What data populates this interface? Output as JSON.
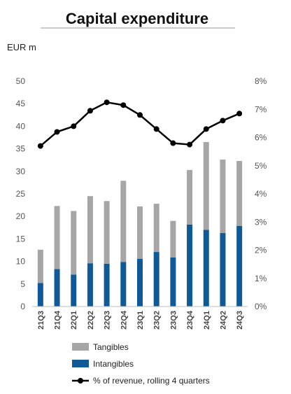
{
  "chart_data": {
    "type": "bar",
    "title": "Capital expenditure",
    "ylabel": "EUR m",
    "ylim": [
      0,
      50
    ],
    "y2lim": [
      0,
      8
    ],
    "yticks": [
      "0",
      "5",
      "10",
      "15",
      "20",
      "25",
      "30",
      "35",
      "40",
      "45",
      "50"
    ],
    "y2ticks": [
      "0%",
      "1%",
      "2%",
      "3%",
      "4%",
      "5%",
      "6%",
      "7%",
      "8%"
    ],
    "categories": [
      "21Q3",
      "21Q4",
      "22Q1",
      "22Q2",
      "22Q3",
      "22Q4",
      "23Q1",
      "23Q2",
      "23Q3",
      "23Q4",
      "24Q1",
      "24Q2",
      "24Q3"
    ],
    "series": [
      {
        "name": "Intangibles",
        "kind": "bar",
        "color": "#0f5a96",
        "values": [
          5.2,
          8.3,
          7.1,
          9.6,
          9.5,
          9.9,
          10.6,
          12.1,
          10.9,
          18.2,
          17.0,
          16.3,
          17.9
        ]
      },
      {
        "name": "Tangibles",
        "kind": "bar",
        "color": "#a6a6a6",
        "values": [
          7.4,
          14.0,
          14.1,
          14.9,
          13.9,
          18.0,
          11.6,
          10.7,
          8.1,
          12.1,
          19.5,
          16.3,
          14.4
        ]
      },
      {
        "name": "% of revenue, rolling 4 quarters",
        "kind": "line",
        "axis": "secondary",
        "color": "#000000",
        "values": [
          5.7,
          6.2,
          6.4,
          6.95,
          7.25,
          7.15,
          6.8,
          6.3,
          5.8,
          5.75,
          6.3,
          6.6,
          6.85
        ]
      }
    ],
    "legend_position": "bottom",
    "grid": false
  }
}
